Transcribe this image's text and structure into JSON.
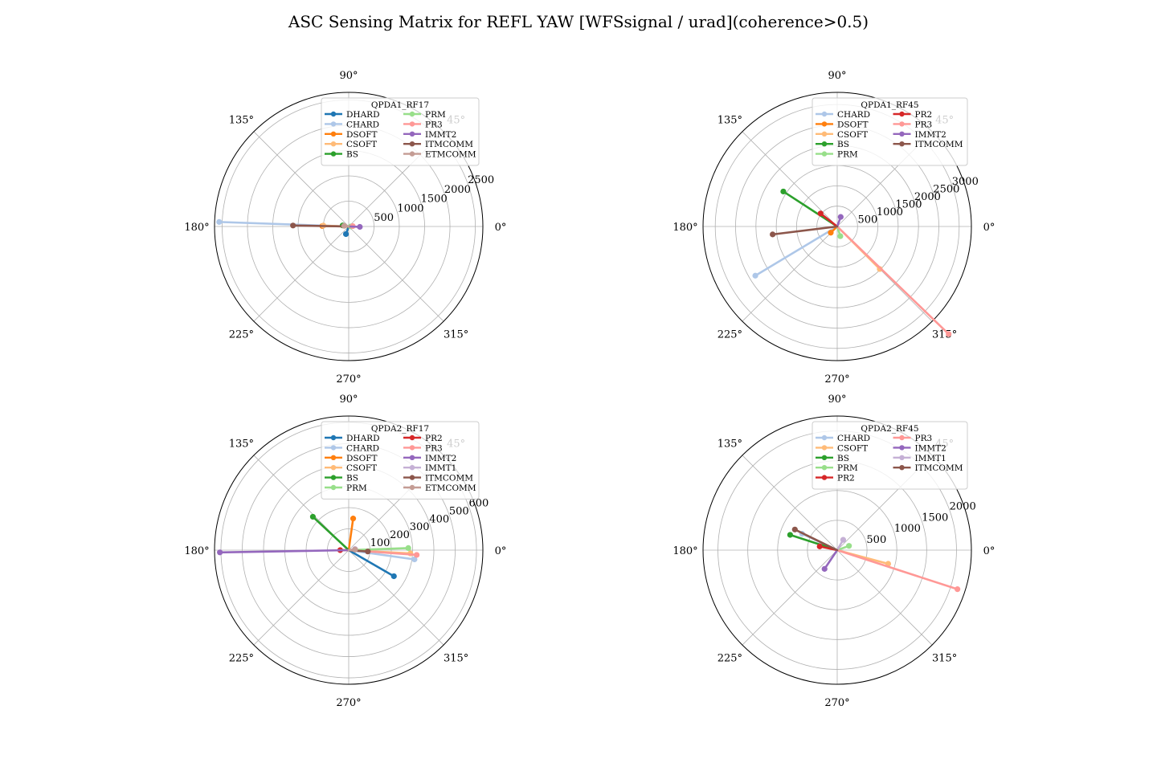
{
  "figure": {
    "title": "ASC Sensing Matrix for REFL YAW [WFSsignal / urad](coherence>0.5)"
  },
  "colors": {
    "DHARD": "#1f77b4",
    "CHARD": "#aec7e8",
    "DSOFT": "#ff7f0e",
    "CSOFT": "#ffbb78",
    "BS": "#2ca02c",
    "PRM": "#98df8a",
    "PR2": "#d62728",
    "PR3": "#ff9896",
    "IMMT2": "#9467bd",
    "IMMT1": "#c5b0d5",
    "ITMCOMM": "#8c564b",
    "ETMCOMM": "#c49c94"
  },
  "chart_data": [
    {
      "type": "polar",
      "legend_title": "QPDA1_RF17",
      "legend_placement": "top-right",
      "angle_labels": [
        "0°",
        "45°",
        "90°",
        "135°",
        "180°",
        "225°",
        "270°",
        "315°"
      ],
      "rmax": 2650,
      "rticks": [
        500,
        1000,
        1500,
        2000,
        2500
      ],
      "grid": true,
      "series": [
        {
          "name": "DHARD",
          "angle": 250,
          "r": 160
        },
        {
          "name": "CHARD",
          "angle": 178,
          "r": 2560
        },
        {
          "name": "DSOFT",
          "angle": 179,
          "r": 520
        },
        {
          "name": "CSOFT",
          "angle": 178,
          "r": 500
        },
        {
          "name": "BS",
          "angle": 170,
          "r": 120
        },
        {
          "name": "PRM",
          "angle": 0,
          "r": 40
        },
        {
          "name": "PR3",
          "angle": 5,
          "r": 80
        },
        {
          "name": "IMMT2",
          "angle": 358,
          "r": 220
        },
        {
          "name": "ITMCOMM",
          "angle": 179,
          "r": 1100
        },
        {
          "name": "ETMCOMM",
          "angle": 172,
          "r": 90
        }
      ]
    },
    {
      "type": "polar",
      "legend_title": "QPDA1_RF45",
      "legend_placement": "top-right",
      "angle_labels": [
        "0°",
        "45°",
        "90°",
        "135°",
        "180°",
        "225°",
        "270°",
        "315°"
      ],
      "rmax": 3300,
      "rticks": [
        500,
        1000,
        1500,
        2000,
        2500,
        3000
      ],
      "grid": true,
      "series": [
        {
          "name": "CHARD",
          "angle": 211,
          "r": 2350
        },
        {
          "name": "DSOFT",
          "angle": 224,
          "r": 220
        },
        {
          "name": "CSOFT",
          "angle": 315,
          "r": 1480
        },
        {
          "name": "BS",
          "angle": 147,
          "r": 1580
        },
        {
          "name": "PRM",
          "angle": 288,
          "r": 250
        },
        {
          "name": "PR2",
          "angle": 142,
          "r": 520
        },
        {
          "name": "PR3",
          "angle": 316,
          "r": 3810
        },
        {
          "name": "IMMT2",
          "angle": 70,
          "r": 250
        },
        {
          "name": "ITMCOMM",
          "angle": 187,
          "r": 1600
        }
      ]
    },
    {
      "type": "polar",
      "legend_title": "QPDA2_RF17",
      "legend_placement": "top-right",
      "angle_labels": [
        "0°",
        "45°",
        "90°",
        "135°",
        "180°",
        "225°",
        "270°",
        "315°"
      ],
      "rmax": 630,
      "rticks": [
        100,
        200,
        300,
        400,
        500,
        600
      ],
      "grid": true,
      "series": [
        {
          "name": "DHARD",
          "angle": 330,
          "r": 245
        },
        {
          "name": "CHARD",
          "angle": 352,
          "r": 312
        },
        {
          "name": "DSOFT",
          "angle": 82,
          "r": 150
        },
        {
          "name": "CSOFT",
          "angle": 357,
          "r": 290
        },
        {
          "name": "BS",
          "angle": 137,
          "r": 230
        },
        {
          "name": "PRM",
          "angle": 2,
          "r": 280
        },
        {
          "name": "PR2",
          "angle": 180,
          "r": 40
        },
        {
          "name": "PR3",
          "angle": 356,
          "r": 320
        },
        {
          "name": "IMMT2",
          "angle": 181,
          "r": 605
        },
        {
          "name": "IMMT1",
          "angle": 10,
          "r": 30
        },
        {
          "name": "ITMCOMM",
          "angle": 356,
          "r": 90
        },
        {
          "name": "ETMCOMM",
          "angle": 5,
          "r": 30
        }
      ]
    },
    {
      "type": "polar",
      "legend_title": "QPDA2_RF45",
      "legend_placement": "top-right",
      "angle_labels": [
        "0°",
        "45°",
        "90°",
        "135°",
        "180°",
        "225°",
        "270°",
        "315°"
      ],
      "rmax": 2250,
      "rticks": [
        500,
        1000,
        1500,
        2000
      ],
      "grid": true,
      "series": [
        {
          "name": "CHARD",
          "angle": 155,
          "r": 650
        },
        {
          "name": "CSOFT",
          "angle": 345,
          "r": 885
        },
        {
          "name": "BS",
          "angle": 162,
          "r": 830
        },
        {
          "name": "PRM",
          "angle": 20,
          "r": 210
        },
        {
          "name": "PR2",
          "angle": 168,
          "r": 300
        },
        {
          "name": "PR3",
          "angle": 342,
          "r": 2120
        },
        {
          "name": "IMMT2",
          "angle": 236,
          "r": 380
        },
        {
          "name": "IMMT1",
          "angle": 60,
          "r": 200
        },
        {
          "name": "ITMCOMM",
          "angle": 154,
          "r": 790
        }
      ]
    }
  ]
}
